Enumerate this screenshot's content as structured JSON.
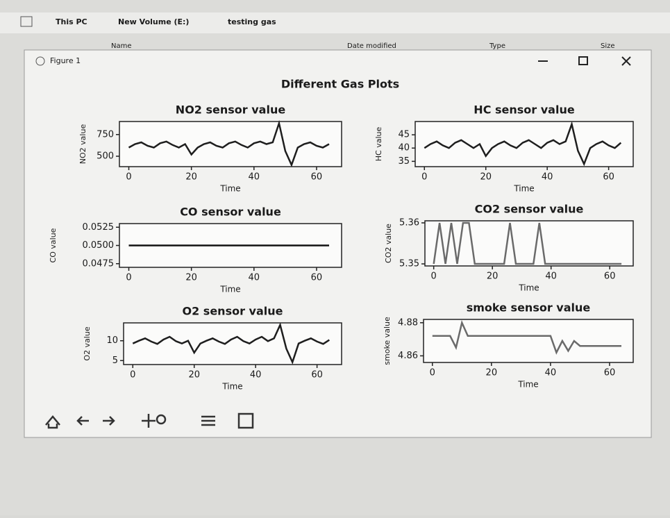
{
  "explorer": {
    "breadcrumb": [
      "This PC",
      "New Volume (E:)",
      "testing gas"
    ],
    "columns": [
      "Name",
      "Date modified",
      "Type",
      "Size"
    ]
  },
  "window": {
    "title": "Figure 1",
    "suptitle": "Different Gas Plots"
  },
  "chart_data": [
    {
      "type": "line",
      "title": "NO2 sensor value",
      "xlabel": "Time",
      "ylabel": "NO2 value",
      "color": "#1e1e1e",
      "x": [
        0,
        2,
        4,
        6,
        8,
        10,
        12,
        14,
        16,
        18,
        20,
        22,
        24,
        26,
        28,
        30,
        32,
        34,
        36,
        38,
        40,
        42,
        44,
        46,
        48,
        50,
        52,
        54,
        56,
        58,
        60,
        62,
        64
      ],
      "values": [
        600,
        640,
        660,
        620,
        600,
        650,
        670,
        630,
        600,
        640,
        520,
        600,
        640,
        660,
        620,
        600,
        650,
        670,
        630,
        600,
        650,
        670,
        640,
        660,
        880,
        560,
        400,
        600,
        640,
        660,
        620,
        600,
        640
      ],
      "xlim": [
        -3,
        68
      ],
      "xticks": [
        0,
        20,
        40,
        60
      ],
      "ylim": [
        380,
        900
      ],
      "yticks": [
        500,
        750
      ]
    },
    {
      "type": "line",
      "title": "HC sensor value",
      "xlabel": "Time",
      "ylabel": "HC value",
      "color": "#1e1e1e",
      "x": [
        0,
        2,
        4,
        6,
        8,
        10,
        12,
        14,
        16,
        18,
        20,
        22,
        24,
        26,
        28,
        30,
        32,
        34,
        36,
        38,
        40,
        42,
        44,
        46,
        48,
        50,
        52,
        54,
        56,
        58,
        60,
        62,
        64
      ],
      "values": [
        40,
        41.5,
        42.5,
        41,
        40,
        42,
        43,
        41.5,
        40,
        41.5,
        37,
        40,
        41.5,
        42.5,
        41,
        40,
        42,
        43,
        41.5,
        40,
        42,
        43,
        41.5,
        42.5,
        49,
        39,
        34,
        40,
        41.5,
        42.5,
        41,
        40,
        42
      ],
      "xlim": [
        -3,
        68
      ],
      "xticks": [
        0,
        20,
        40,
        60
      ],
      "ylim": [
        33,
        50
      ],
      "yticks": [
        35,
        40,
        45
      ]
    },
    {
      "type": "line",
      "title": "CO sensor value",
      "xlabel": "Time",
      "ylabel": "CO value",
      "color": "#111111",
      "x": [
        0,
        2,
        4,
        6,
        8,
        10,
        12,
        14,
        16,
        18,
        20,
        22,
        24,
        26,
        28,
        30,
        32,
        34,
        36,
        38,
        40,
        42,
        44,
        46,
        48,
        50,
        52,
        54,
        56,
        58,
        60,
        62,
        64
      ],
      "values": [
        0.05,
        0.05,
        0.05,
        0.05,
        0.05,
        0.05,
        0.05,
        0.05,
        0.05,
        0.05,
        0.05,
        0.05,
        0.05,
        0.05,
        0.05,
        0.05,
        0.05,
        0.05,
        0.05,
        0.05,
        0.05,
        0.05,
        0.05,
        0.05,
        0.05,
        0.05,
        0.05,
        0.05,
        0.05,
        0.05,
        0.05,
        0.05,
        0.05
      ],
      "xlim": [
        -3,
        68
      ],
      "xticks": [
        0,
        20,
        40,
        60
      ],
      "ylim": [
        0.047,
        0.053
      ],
      "yticks": [
        0.0475,
        {
          "value": 0.05,
          "label": "0.0500"
        },
        0.0525
      ]
    },
    {
      "type": "line",
      "title": "CO2 sensor value",
      "xlabel": "Time",
      "ylabel": "CO2 value",
      "color": "#6a6a6a",
      "x": [
        0,
        2,
        4,
        6,
        8,
        10,
        12,
        14,
        16,
        18,
        20,
        22,
        24,
        26,
        28,
        30,
        32,
        34,
        36,
        38,
        40,
        42,
        44,
        46,
        48,
        50,
        52,
        54,
        56,
        58,
        60,
        62,
        64
      ],
      "values": [
        5.35,
        5.36,
        5.35,
        5.36,
        5.35,
        5.36,
        5.36,
        5.35,
        5.35,
        5.35,
        5.35,
        5.35,
        5.35,
        5.36,
        5.35,
        5.35,
        5.35,
        5.35,
        5.36,
        5.35,
        5.35,
        5.35,
        5.35,
        5.35,
        5.35,
        5.35,
        5.35,
        5.35,
        5.35,
        5.35,
        5.35,
        5.35,
        5.35
      ],
      "xlim": [
        -3,
        68
      ],
      "xticks": [
        0,
        20,
        40,
        60
      ],
      "ylim": [
        5.3495,
        5.3605
      ],
      "yticks": [
        5.35,
        5.36
      ]
    },
    {
      "type": "line",
      "title": "O2 sensor value",
      "xlabel": "Time",
      "ylabel": "O2 value",
      "color": "#1e1e1e",
      "x": [
        0,
        2,
        4,
        6,
        8,
        10,
        12,
        14,
        16,
        18,
        20,
        22,
        24,
        26,
        28,
        30,
        32,
        34,
        36,
        38,
        40,
        42,
        44,
        46,
        48,
        50,
        52,
        54,
        56,
        58,
        60,
        62,
        64
      ],
      "values": [
        9.3,
        10,
        10.6,
        9.8,
        9.2,
        10.3,
        11,
        9.9,
        9.3,
        10,
        7,
        9.3,
        10,
        10.6,
        9.8,
        9.2,
        10.3,
        11,
        9.9,
        9.3,
        10.3,
        11,
        9.9,
        10.6,
        14,
        8,
        4.6,
        9.3,
        10,
        10.6,
        9.8,
        9.2,
        10.2
      ],
      "xlim": [
        -3,
        68
      ],
      "xticks": [
        0,
        20,
        40,
        60
      ],
      "ylim": [
        4,
        14.5
      ],
      "yticks": [
        5,
        10
      ]
    },
    {
      "type": "line",
      "title": "smoke sensor value",
      "xlabel": "Time",
      "ylabel": "smoke value",
      "color": "#6a6a6a",
      "x": [
        0,
        2,
        4,
        6,
        8,
        10,
        12,
        14,
        16,
        18,
        20,
        22,
        24,
        26,
        28,
        30,
        32,
        34,
        36,
        38,
        40,
        42,
        44,
        46,
        48,
        50,
        52,
        54,
        56,
        58,
        60,
        62,
        64
      ],
      "values": [
        4.872,
        4.872,
        4.872,
        4.872,
        4.865,
        4.88,
        4.872,
        4.872,
        4.872,
        4.872,
        4.872,
        4.872,
        4.872,
        4.872,
        4.872,
        4.872,
        4.872,
        4.872,
        4.872,
        4.872,
        4.872,
        4.862,
        4.869,
        4.863,
        4.869,
        4.866,
        4.866,
        4.866,
        4.866,
        4.866,
        4.866,
        4.866,
        4.866
      ],
      "xlim": [
        -3,
        68
      ],
      "xticks": [
        0,
        20,
        40,
        60
      ],
      "ylim": [
        4.856,
        4.882
      ],
      "yticks": [
        4.86,
        4.88
      ]
    }
  ]
}
